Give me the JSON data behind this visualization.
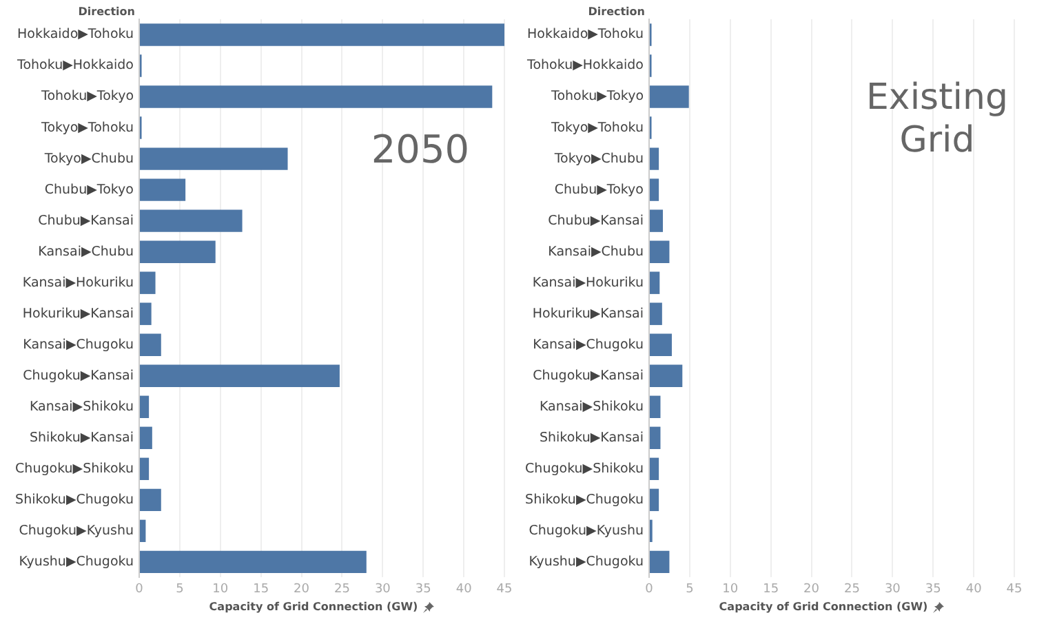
{
  "chart_data": [
    {
      "type": "bar",
      "orientation": "horizontal",
      "title": "2050",
      "ylabel": "Direction",
      "xlabel": "Capacity of Grid Connection (GW)",
      "grid": "x",
      "color": "#4e77a6",
      "categories": [
        "Hokkaido▶Tohoku",
        "Tohoku▶Hokkaido",
        "Tohoku▶Tokyo",
        "Tokyo▶Tohoku",
        "Tokyo▶Chubu",
        "Chubu▶Tokyo",
        "Chubu▶Kansai",
        "Kansai▶Chubu",
        "Kansai▶Hokuriku",
        "Hokuriku▶Kansai",
        "Kansai▶Chugoku",
        "Chugoku▶Kansai",
        "Kansai▶Shikoku",
        "Shikoku▶Kansai",
        "Chugoku▶Shikoku",
        "Shikoku▶Chugoku",
        "Chugoku▶Kyushu",
        "Kyushu▶Chugoku"
      ],
      "values": [
        45,
        0.3,
        43.5,
        0.3,
        18.3,
        5.7,
        12.7,
        9.4,
        2,
        1.5,
        2.7,
        24.7,
        1.2,
        1.6,
        1.2,
        2.7,
        0.8,
        28
      ],
      "xlim": [
        0,
        45
      ],
      "xticks": [
        0,
        5,
        10,
        15,
        20,
        25,
        30,
        35,
        40,
        45
      ]
    },
    {
      "type": "bar",
      "orientation": "horizontal",
      "title": "Existing Grid",
      "ylabel": "Direction",
      "xlabel": "Capacity of Grid Connection (GW)",
      "grid": "x",
      "color": "#4e77a6",
      "categories": [
        "Hokkaido▶Tohoku",
        "Tohoku▶Hokkaido",
        "Tohoku▶Tokyo",
        "Tokyo▶Tohoku",
        "Tokyo▶Chubu",
        "Chubu▶Tokyo",
        "Chubu▶Kansai",
        "Kansai▶Chubu",
        "Kansai▶Hokuriku",
        "Hokuriku▶Kansai",
        "Kansai▶Chugoku",
        "Chugoku▶Kansai",
        "Kansai▶Shikoku",
        "Shikoku▶Kansai",
        "Chugoku▶Shikoku",
        "Shikoku▶Chugoku",
        "Chugoku▶Kyushu",
        "Kyushu▶Chugoku"
      ],
      "values": [
        0.3,
        0.3,
        4.9,
        0.3,
        1.2,
        1.2,
        1.7,
        2.5,
        1.3,
        1.6,
        2.8,
        4.1,
        1.4,
        1.4,
        1.2,
        1.2,
        0.4,
        2.5
      ],
      "xlim": [
        0,
        45
      ],
      "xticks": [
        0,
        5,
        10,
        15,
        20,
        25,
        30,
        35,
        40,
        45
      ]
    }
  ]
}
